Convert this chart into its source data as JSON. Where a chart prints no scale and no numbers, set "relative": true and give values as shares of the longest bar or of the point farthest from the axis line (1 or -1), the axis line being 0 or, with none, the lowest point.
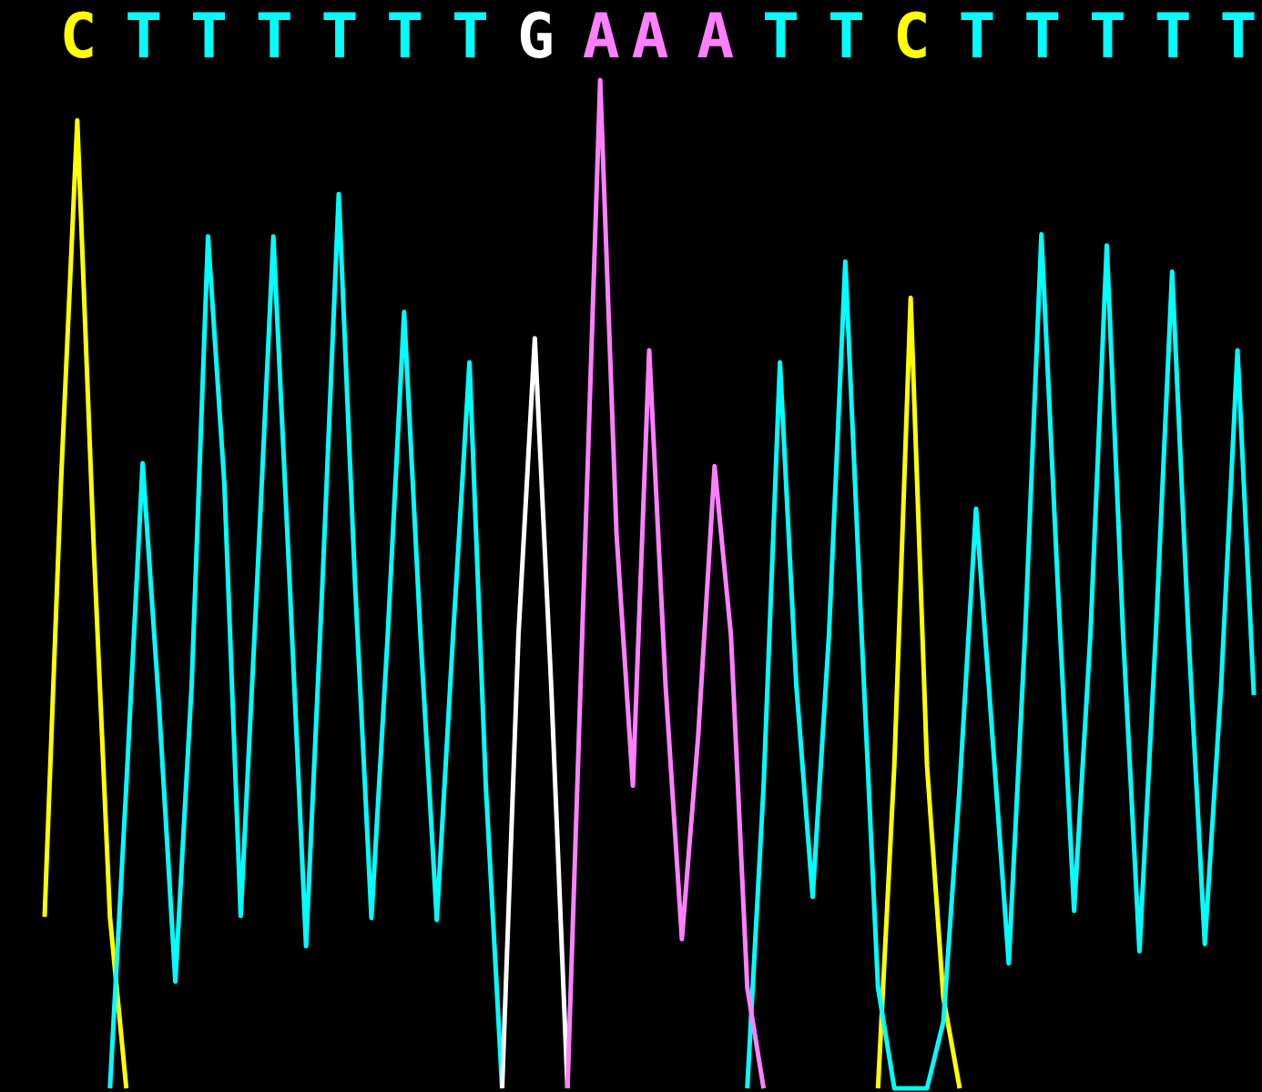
{
  "chart_data": {
    "type": "line",
    "relative": true,
    "legend": false,
    "grid": false,
    "marker": "none",
    "line_style": "solid",
    "categories": [
      null,
      null,
      "C",
      null,
      null,
      null,
      "T",
      null,
      null,
      null,
      "T",
      null,
      null,
      null,
      "T",
      null,
      null,
      null,
      "T",
      null,
      null,
      null,
      "T",
      null,
      null,
      null,
      "T",
      null,
      null,
      null,
      "G",
      null,
      null,
      null,
      "A",
      null,
      null,
      "A",
      null,
      null,
      null,
      "A",
      null,
      null,
      null,
      "T",
      null,
      null,
      null,
      "T",
      null,
      null,
      null,
      "C",
      null,
      null,
      null,
      "T",
      null,
      null,
      null,
      "T",
      null,
      null,
      null,
      "T",
      null,
      null,
      null,
      "T",
      null,
      null,
      null,
      "T",
      null
    ],
    "series": [
      {
        "color": "#ffff00",
        "values": [
          0.17,
          0.6,
          0.96,
          0.54,
          0.17,
          0,
          null,
          null,
          null,
          null,
          null,
          null,
          null,
          null,
          null,
          null,
          null,
          null,
          null,
          null,
          null,
          null,
          null,
          null,
          null,
          null,
          null,
          null,
          null,
          null,
          null,
          null,
          null,
          null,
          null,
          null,
          null,
          null,
          null,
          null,
          null,
          null,
          null,
          null,
          null,
          null,
          null,
          null,
          null,
          null,
          null,
          0,
          0.32,
          0.784,
          0.32,
          0.09,
          0,
          null,
          null,
          null,
          null,
          null,
          null,
          null,
          null,
          null,
          null,
          null,
          null,
          null,
          null,
          null,
          null,
          null,
          null
        ]
      },
      {
        "color": "#00ffff",
        "values": [
          null,
          null,
          null,
          null,
          0,
          0.3,
          0.62,
          0.38,
          0.106,
          0.4,
          0.845,
          0.6,
          0.171,
          0.5,
          0.845,
          0.5,
          0.141,
          0.5,
          0.887,
          0.5,
          0.169,
          0.45,
          0.77,
          0.45,
          0.167,
          0.45,
          0.72,
          0.3,
          0,
          null,
          null,
          null,
          null,
          null,
          null,
          null,
          null,
          null,
          null,
          null,
          null,
          null,
          null,
          0,
          0.3,
          0.72,
          0.4,
          0.19,
          0.45,
          0.82,
          0.45,
          0.1,
          0,
          0,
          0,
          0.066,
          0.3,
          0.575,
          0.35,
          0.124,
          0.45,
          0.847,
          0.5,
          0.176,
          0.45,
          0.836,
          0.45,
          0.136,
          0.45,
          0.81,
          0.45,
          0.143,
          0.4,
          0.732,
          0.39
        ]
      },
      {
        "color": "#ffffff",
        "values": [
          null,
          null,
          null,
          null,
          null,
          null,
          null,
          null,
          null,
          null,
          null,
          null,
          null,
          null,
          null,
          null,
          null,
          null,
          null,
          null,
          null,
          null,
          null,
          null,
          null,
          null,
          null,
          null,
          0,
          0.45,
          0.744,
          0.4,
          0,
          null,
          null,
          null,
          null,
          null,
          null,
          null,
          null,
          null,
          null,
          null,
          null,
          null,
          null,
          null,
          null,
          null,
          null,
          null,
          null,
          null,
          null,
          null,
          null,
          null,
          null,
          null,
          null,
          null,
          null,
          null,
          null,
          null,
          null,
          null,
          null,
          null,
          null,
          null,
          null,
          null,
          null
        ]
      },
      {
        "color": "#ff80ff",
        "values": [
          null,
          null,
          null,
          null,
          null,
          null,
          null,
          null,
          null,
          null,
          null,
          null,
          null,
          null,
          null,
          null,
          null,
          null,
          null,
          null,
          null,
          null,
          null,
          null,
          null,
          null,
          null,
          null,
          null,
          null,
          null,
          null,
          0,
          0.5,
          1.0,
          0.55,
          0.3,
          0.732,
          0.4,
          0.148,
          0.35,
          0.617,
          0.45,
          0.1,
          0,
          null,
          null,
          null,
          null,
          null,
          null,
          null,
          null,
          null,
          null,
          null,
          null,
          null,
          null,
          null,
          null,
          null,
          null,
          null,
          null,
          null,
          null,
          null,
          null,
          null,
          null,
          null,
          null,
          null,
          null
        ]
      }
    ]
  }
}
